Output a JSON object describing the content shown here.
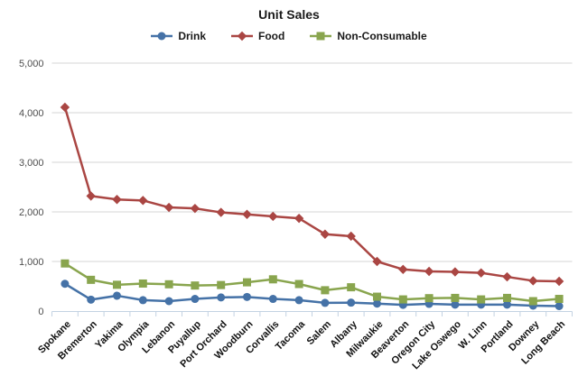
{
  "chart_data": {
    "type": "line",
    "title": "Unit Sales",
    "categories": [
      "Spokane",
      "Bremerton",
      "Yakima",
      "Olympia",
      "Lebanon",
      "Puyallup",
      "Port Orchard",
      "Woodburn",
      "Corvallis",
      "Tacoma",
      "Salem",
      "Albany",
      "Milwaukie",
      "Beaverton",
      "Oregon City",
      "Lake Oswego",
      "W. Linn",
      "Portland",
      "Downey",
      "Long Beach"
    ],
    "series": [
      {
        "name": "Drink",
        "color": "#4572A7",
        "marker": "circle",
        "values": [
          550,
          230,
          310,
          220,
          200,
          245,
          275,
          285,
          245,
          220,
          165,
          170,
          150,
          125,
          145,
          130,
          130,
          130,
          110,
          100
        ]
      },
      {
        "name": "Food",
        "color": "#AA4643",
        "marker": "diamond",
        "values": [
          4110,
          2320,
          2250,
          2230,
          2090,
          2070,
          1990,
          1950,
          1910,
          1870,
          1550,
          1510,
          1000,
          840,
          800,
          790,
          770,
          690,
          610,
          600
        ]
      },
      {
        "name": "Non-Consumable",
        "color": "#89A54E",
        "marker": "square",
        "values": [
          960,
          630,
          530,
          555,
          540,
          515,
          525,
          580,
          640,
          545,
          420,
          480,
          290,
          235,
          260,
          265,
          235,
          265,
          200,
          245
        ]
      }
    ],
    "xlabel": "",
    "ylabel": "",
    "ylim": [
      0,
      5000
    ],
    "yticks": {
      "values": [
        0,
        1000,
        2000,
        3000,
        4000,
        5000
      ],
      "labels": [
        "0",
        "1,000",
        "2,000",
        "3,000",
        "4,000",
        "5,000"
      ]
    },
    "grid": "horizontal",
    "legend_position": "top-center",
    "colors": {
      "gridline": "#D4D4D4",
      "axis_line": "#C3D2E2",
      "background": "#FFFFFF"
    }
  }
}
